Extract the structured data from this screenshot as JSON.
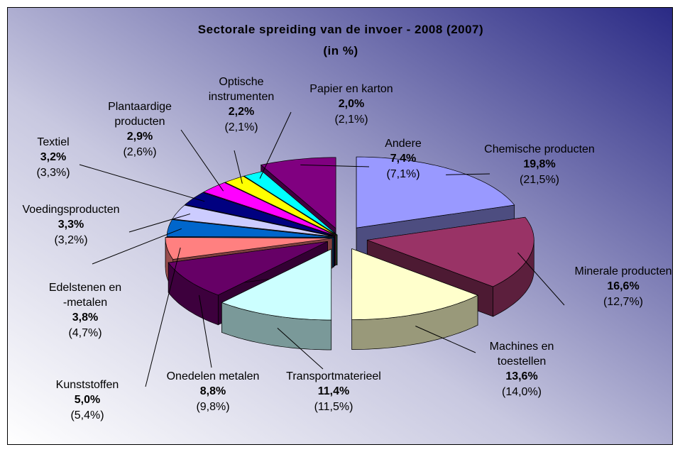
{
  "chart_data": {
    "type": "pie",
    "title": "Sectorale spreiding van de invoer - 2008 (2007)",
    "subtitle": "(in %)",
    "categories": [
      "Chemische producten",
      "Minerale producten",
      "Machines en\ntoestellen",
      "Transportmaterieel",
      "Onedelen metalen",
      "Kunststoffen",
      "Edelstenen en\n-metalen",
      "Voedingsproducten",
      "Textiel",
      "Plantaardige\nproducten",
      "Optische\ninstrumenten",
      "Papier en karton",
      "Andere"
    ],
    "values": [
      19.8,
      16.6,
      13.6,
      11.4,
      8.8,
      5.0,
      3.8,
      3.3,
      3.2,
      2.9,
      2.2,
      2.0,
      7.4
    ],
    "value_labels": [
      "19,8%",
      "16,6%",
      "13,6%",
      "11,4%",
      "8,8%",
      "5,0%",
      "3,8%",
      "3,3%",
      "3,2%",
      "2,9%",
      "2,2%",
      "2,0%",
      "7,4%"
    ],
    "previous_values": [
      21.5,
      12.7,
      14.0,
      11.5,
      9.8,
      5.4,
      4.7,
      3.2,
      3.3,
      2.6,
      2.1,
      2.1,
      7.1
    ],
    "previous_value_labels": [
      "(21,5%)",
      "(12,7%)",
      "(14,0%)",
      "(11,5%)",
      "(9,8%)",
      "(5,4%)",
      "(4,7%)",
      "(3,2%)",
      "(3,3%)",
      "(2,6%)",
      "(2,1%)",
      "(2,1%)",
      "(7,1%)"
    ],
    "colors": [
      "#9999ff",
      "#993366",
      "#ffffcc",
      "#ccffff",
      "#660066",
      "#ff8080",
      "#0066cc",
      "#ccccff",
      "#000080",
      "#ff00ff",
      "#ffff00",
      "#00ffff",
      "#800080"
    ]
  }
}
